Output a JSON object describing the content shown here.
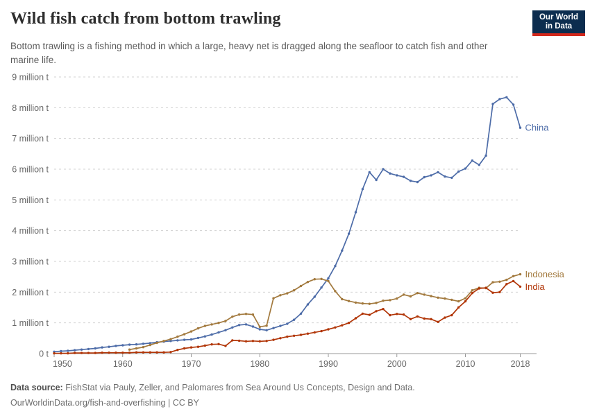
{
  "header": {
    "title": "Wild fish catch from bottom trawling",
    "subtitle": "Bottom trawling is a fishing method in which a large, heavy net is dragged along the seafloor to catch fish and other marine life.",
    "logo": {
      "line1": "Our World",
      "line2": "in Data",
      "bg_color": "#0c2d4f",
      "accent_color": "#d3281c"
    }
  },
  "footer": {
    "source_label": "Data source:",
    "source_text": " FishStat via Pauly, Zeller, and Palomares from Sea Around Us Concepts, Design and Data.",
    "link_text": "OurWorldinData.org/fish-and-overfishing",
    "separator": " | ",
    "license": "CC BY"
  },
  "chart_data": {
    "type": "line",
    "title": "Wild fish catch from bottom trawling",
    "unit": "million tonnes",
    "x_range": [
      1950,
      2018
    ],
    "y_range": [
      0,
      9
    ],
    "grid": "horizontal-dashed",
    "grid_color": "#d0d0d0",
    "axis_color": "#999999",
    "tick_label_color": "#666666",
    "x_ticks": [
      1950,
      1960,
      1970,
      1980,
      1990,
      2000,
      2010,
      2018
    ],
    "y_ticks": [
      {
        "value": 0,
        "label": "0 t"
      },
      {
        "value": 1,
        "label": "1 million t"
      },
      {
        "value": 2,
        "label": "2 million t"
      },
      {
        "value": 3,
        "label": "3 million t"
      },
      {
        "value": 4,
        "label": "4 million t"
      },
      {
        "value": 5,
        "label": "5 million t"
      },
      {
        "value": 6,
        "label": "6 million t"
      },
      {
        "value": 7,
        "label": "7 million t"
      },
      {
        "value": 8,
        "label": "8 million t"
      },
      {
        "value": 9,
        "label": "9 million t"
      }
    ],
    "series": [
      {
        "name": "China",
        "color": "#4d6ca8",
        "start_year": 1950,
        "values": [
          0.06,
          0.08,
          0.09,
          0.11,
          0.13,
          0.15,
          0.17,
          0.2,
          0.22,
          0.25,
          0.27,
          0.29,
          0.3,
          0.32,
          0.34,
          0.37,
          0.39,
          0.41,
          0.43,
          0.45,
          0.46,
          0.51,
          0.56,
          0.62,
          0.69,
          0.76,
          0.85,
          0.93,
          0.95,
          0.88,
          0.79,
          0.76,
          0.83,
          0.9,
          0.97,
          1.1,
          1.3,
          1.6,
          1.85,
          2.15,
          2.45,
          2.85,
          3.35,
          3.9,
          4.6,
          5.35,
          5.9,
          5.65,
          6.0,
          5.86,
          5.8,
          5.75,
          5.62,
          5.58,
          5.74,
          5.8,
          5.9,
          5.76,
          5.72,
          5.92,
          6.02,
          6.28,
          6.14,
          6.44,
          8.12,
          8.28,
          8.34,
          8.1,
          7.35
        ]
      },
      {
        "name": "Indonesia",
        "color": "#a2793d",
        "start_year": 1961,
        "values": [
          0.13,
          0.17,
          0.21,
          0.28,
          0.35,
          0.41,
          0.47,
          0.55,
          0.63,
          0.72,
          0.82,
          0.9,
          0.95,
          1.0,
          1.06,
          1.2,
          1.27,
          1.29,
          1.27,
          0.87,
          0.91,
          1.8,
          1.9,
          1.96,
          2.06,
          2.2,
          2.33,
          2.42,
          2.43,
          2.36,
          2.03,
          1.77,
          1.71,
          1.66,
          1.63,
          1.62,
          1.65,
          1.72,
          1.74,
          1.79,
          1.92,
          1.86,
          1.97,
          1.92,
          1.87,
          1.82,
          1.79,
          1.75,
          1.7,
          1.8,
          2.06,
          2.14,
          2.13,
          2.32,
          2.34,
          2.4,
          2.52,
          2.58
        ]
      },
      {
        "name": "India",
        "color": "#b13507",
        "start_year": 1950,
        "values": [
          0.01,
          0.01,
          0.01,
          0.02,
          0.02,
          0.02,
          0.02,
          0.03,
          0.03,
          0.03,
          0.03,
          0.03,
          0.04,
          0.04,
          0.04,
          0.04,
          0.04,
          0.05,
          0.12,
          0.17,
          0.2,
          0.22,
          0.26,
          0.3,
          0.31,
          0.25,
          0.43,
          0.42,
          0.4,
          0.41,
          0.4,
          0.41,
          0.45,
          0.5,
          0.55,
          0.58,
          0.61,
          0.65,
          0.69,
          0.73,
          0.79,
          0.85,
          0.92,
          1.0,
          1.15,
          1.3,
          1.26,
          1.38,
          1.45,
          1.25,
          1.29,
          1.27,
          1.12,
          1.21,
          1.14,
          1.12,
          1.03,
          1.17,
          1.25,
          1.5,
          1.7,
          1.97,
          2.12,
          2.14,
          1.98,
          2.0,
          2.26,
          2.36,
          2.18
        ]
      }
    ]
  }
}
